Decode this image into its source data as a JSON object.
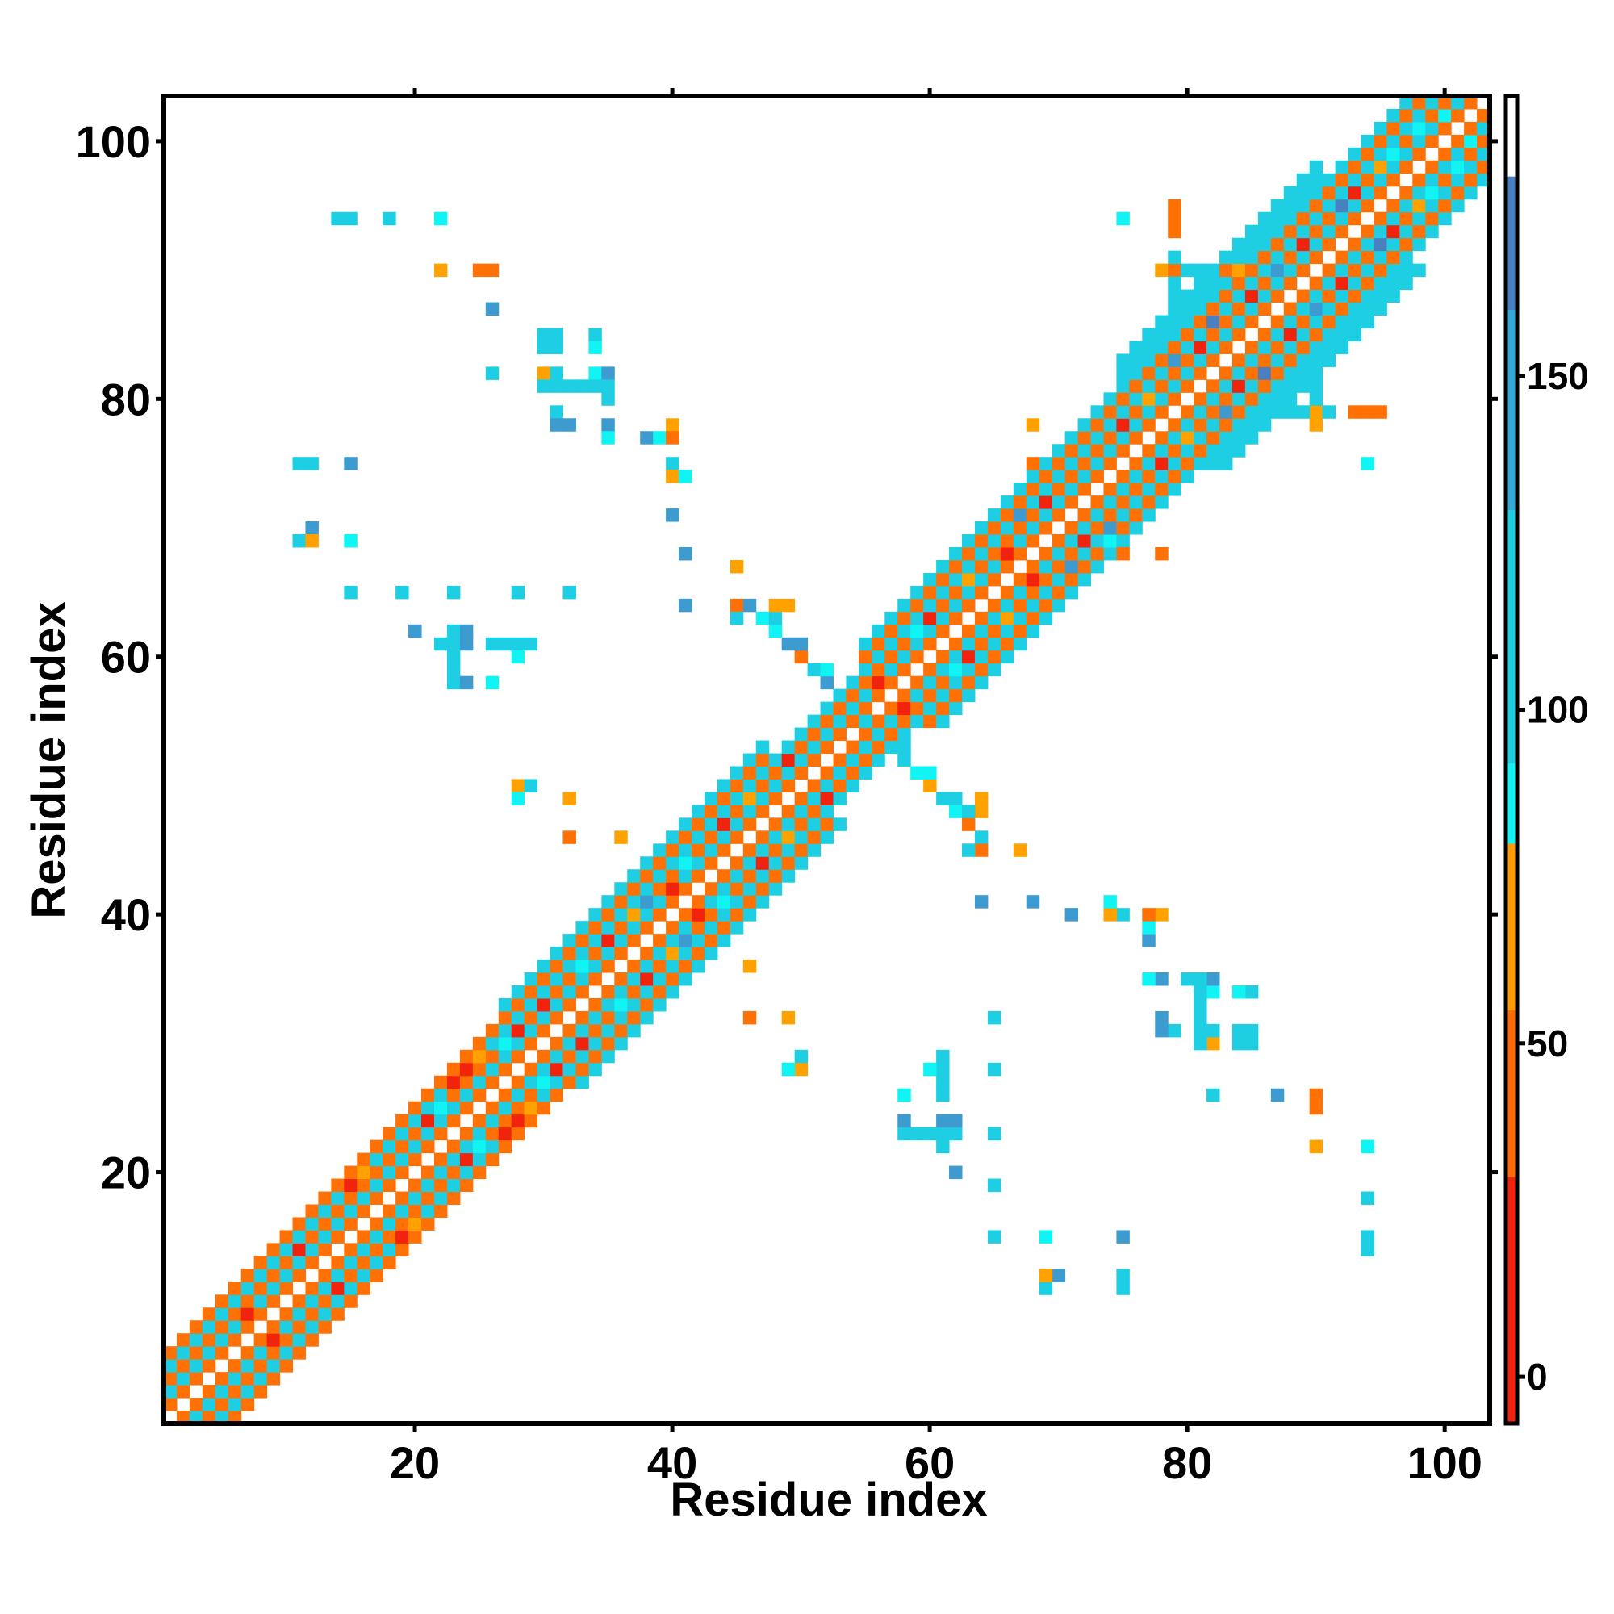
{
  "chart_data": {
    "type": "heatmap",
    "title": "",
    "xlabel": "Residue index",
    "ylabel": "Residue index",
    "xlim": [
      0.5,
      103.5
    ],
    "ylim": [
      0.5,
      103.5
    ],
    "xticks": [
      20,
      40,
      60,
      80,
      100
    ],
    "yticks": [
      20,
      40,
      60,
      80,
      100
    ],
    "colorbar": {
      "range": [
        -7,
        192
      ],
      "ticks": [
        0,
        50,
        100,
        150
      ],
      "stops": [
        {
          "from": -7,
          "to": 30,
          "color": "#f2230c"
        },
        {
          "from": 30,
          "to": 55,
          "color": "#ff6a05"
        },
        {
          "from": 55,
          "to": 80,
          "color": "#ff9a00"
        },
        {
          "from": 80,
          "to": 92,
          "color": "#10f4f4"
        },
        {
          "from": 92,
          "to": 130,
          "color": "#1ecfe4"
        },
        {
          "from": 130,
          "to": 160,
          "color": "#35a9d6"
        },
        {
          "from": 160,
          "to": 180,
          "color": "#4680c0"
        },
        {
          "from": 180,
          "to": 192,
          "color": "#ffffff"
        }
      ]
    },
    "codes": {
      "r": {
        "value": 10,
        "color": "#f2230c"
      },
      "o": {
        "value": 45,
        "color": "#ff7005"
      },
      "y": {
        "value": 70,
        "color": "#ffa200"
      },
      "c": {
        "value": 86,
        "color": "#10f4f4"
      },
      "k": {
        "value": 110,
        "color": "#1ecfe4"
      },
      "b": {
        "value": 150,
        "color": "#3d9bd0"
      },
      "d": {
        "value": 170,
        "color": "#4a80bf"
      }
    },
    "band": {
      "n": 103,
      "segments": [
        {
          "from": 1,
          "to": 26,
          "codes": "okoko"
        },
        {
          "from": 27,
          "to": 47,
          "codes": "okokok"
        },
        {
          "from": 48,
          "to": 54,
          "codes": "okok"
        },
        {
          "from": 55,
          "to": 74,
          "codes": "okokok"
        },
        {
          "from": 75,
          "to": 90,
          "codes": "okokokkk"
        },
        {
          "from": 91,
          "to": 103,
          "codes": "okokok"
        }
      ],
      "overrides": [
        [
          9,
          7,
          "r"
        ],
        [
          14,
          11,
          "r"
        ],
        [
          19,
          15,
          "r"
        ],
        [
          24,
          21,
          "r"
        ],
        [
          27,
          23,
          "r"
        ],
        [
          28,
          24,
          "r"
        ],
        [
          31,
          28,
          "r"
        ],
        [
          33,
          30,
          "r"
        ],
        [
          38,
          35,
          "r"
        ],
        [
          42,
          40,
          "r"
        ],
        [
          47,
          44,
          "r"
        ],
        [
          52,
          49,
          "r"
        ],
        [
          58,
          56,
          "r"
        ],
        [
          63,
          60,
          "r"
        ],
        [
          68,
          66,
          "r"
        ],
        [
          72,
          69,
          "r"
        ],
        [
          78,
          75,
          "r"
        ],
        [
          84,
          81,
          "r"
        ],
        [
          88,
          85,
          "r"
        ],
        [
          92,
          89,
          "r"
        ],
        [
          96,
          93,
          "r"
        ],
        [
          25,
          22,
          "c"
        ],
        [
          30,
          27,
          "c"
        ],
        [
          36,
          33,
          "c"
        ],
        [
          41,
          38,
          "b"
        ],
        [
          44,
          41,
          "c"
        ],
        [
          62,
          59,
          "c"
        ],
        [
          71,
          67,
          "b"
        ],
        [
          83,
          79,
          "b"
        ],
        [
          86,
          82,
          "d"
        ],
        [
          90,
          87,
          "b"
        ],
        [
          95,
          92,
          "d"
        ],
        [
          99,
          96,
          "c"
        ],
        [
          101,
          98,
          "c"
        ],
        [
          102,
          100,
          "c"
        ],
        [
          20,
          16,
          "y"
        ],
        [
          29,
          25,
          "y"
        ],
        [
          40,
          37,
          "y"
        ],
        [
          49,
          46,
          "y"
        ],
        [
          66,
          63,
          "y"
        ],
        [
          80,
          77,
          "y"
        ],
        [
          98,
          95,
          "y"
        ]
      ]
    },
    "antidiagonal": [
      [
        47,
        63,
        "c"
      ],
      [
        48,
        62,
        "c"
      ],
      [
        49,
        61,
        "b"
      ],
      [
        50,
        60,
        "o"
      ],
      [
        51,
        59,
        "k"
      ],
      [
        52,
        58,
        "b"
      ],
      [
        53,
        57,
        "k"
      ],
      [
        54,
        56,
        "o"
      ],
      [
        55,
        55,
        "k"
      ],
      [
        56,
        54,
        "k"
      ],
      [
        57,
        53,
        "o"
      ],
      [
        58,
        52,
        "k"
      ],
      [
        59,
        51,
        "c"
      ],
      [
        60,
        50,
        "y"
      ],
      [
        61,
        49,
        "k"
      ],
      [
        62,
        48,
        "c"
      ],
      [
        63,
        47,
        "o"
      ],
      [
        64,
        46,
        "k"
      ],
      [
        48,
        63,
        "c"
      ],
      [
        50,
        61,
        "b"
      ],
      [
        52,
        59,
        "c"
      ],
      [
        58,
        53,
        "k"
      ],
      [
        60,
        51,
        "c"
      ],
      [
        62,
        49,
        "k"
      ],
      [
        64,
        48,
        "y"
      ]
    ],
    "contacts": [
      [
        14,
        94,
        "k"
      ],
      [
        15,
        94,
        "k"
      ],
      [
        18,
        94,
        "k"
      ],
      [
        22,
        94,
        "c"
      ],
      [
        22,
        90,
        "y"
      ],
      [
        25,
        90,
        "o"
      ],
      [
        26,
        90,
        "o"
      ],
      [
        26,
        87,
        "b"
      ],
      [
        26,
        82,
        "k"
      ],
      [
        30,
        85,
        "k"
      ],
      [
        31,
        85,
        "k"
      ],
      [
        34,
        85,
        "k"
      ],
      [
        30,
        84,
        "k"
      ],
      [
        31,
        84,
        "k"
      ],
      [
        34,
        84,
        "c"
      ],
      [
        30,
        82,
        "y"
      ],
      [
        31,
        82,
        "k"
      ],
      [
        34,
        82,
        "c"
      ],
      [
        35,
        82,
        "b"
      ],
      [
        30,
        81,
        "k"
      ],
      [
        31,
        81,
        "k"
      ],
      [
        32,
        81,
        "k"
      ],
      [
        33,
        81,
        "k"
      ],
      [
        34,
        81,
        "k"
      ],
      [
        35,
        81,
        "k"
      ],
      [
        35,
        80,
        "k"
      ],
      [
        31,
        79,
        "k"
      ],
      [
        31,
        78,
        "b"
      ],
      [
        32,
        78,
        "b"
      ],
      [
        35,
        78,
        "b"
      ],
      [
        35,
        77,
        "c"
      ],
      [
        38,
        77,
        "b"
      ],
      [
        39,
        77,
        "c"
      ],
      [
        40,
        78,
        "y"
      ],
      [
        40,
        77,
        "o"
      ],
      [
        40,
        75,
        "k"
      ],
      [
        40,
        74,
        "y"
      ],
      [
        41,
        74,
        "c"
      ],
      [
        40,
        71,
        "b"
      ],
      [
        41,
        68,
        "b"
      ],
      [
        45,
        67,
        "y"
      ],
      [
        41,
        64,
        "b"
      ],
      [
        45,
        64,
        "o"
      ],
      [
        46,
        64,
        "b"
      ],
      [
        48,
        64,
        "y"
      ],
      [
        49,
        64,
        "y"
      ],
      [
        45,
        63,
        "k"
      ],
      [
        48,
        63,
        "k"
      ],
      [
        11,
        75,
        "k"
      ],
      [
        12,
        75,
        "k"
      ],
      [
        15,
        75,
        "b"
      ],
      [
        12,
        70,
        "b"
      ],
      [
        11,
        69,
        "k"
      ],
      [
        12,
        69,
        "y"
      ],
      [
        15,
        69,
        "c"
      ],
      [
        15,
        65,
        "k"
      ],
      [
        19,
        65,
        "k"
      ],
      [
        23,
        65,
        "k"
      ],
      [
        28,
        65,
        "k"
      ],
      [
        32,
        65,
        "k"
      ],
      [
        20,
        62,
        "b"
      ],
      [
        23,
        62,
        "k"
      ],
      [
        24,
        62,
        "b"
      ],
      [
        22,
        61,
        "k"
      ],
      [
        23,
        61,
        "k"
      ],
      [
        24,
        61,
        "b"
      ],
      [
        26,
        61,
        "k"
      ],
      [
        27,
        61,
        "k"
      ],
      [
        28,
        61,
        "k"
      ],
      [
        29,
        61,
        "k"
      ],
      [
        23,
        60,
        "k"
      ],
      [
        28,
        60,
        "c"
      ],
      [
        23,
        59,
        "k"
      ],
      [
        23,
        58,
        "k"
      ],
      [
        24,
        58,
        "b"
      ],
      [
        26,
        58,
        "c"
      ],
      [
        28,
        50,
        "y"
      ],
      [
        29,
        50,
        "k"
      ],
      [
        28,
        49,
        "c"
      ],
      [
        32,
        49,
        "y"
      ],
      [
        32,
        46,
        "o"
      ],
      [
        36,
        46,
        "y"
      ],
      [
        79,
        95,
        "o"
      ],
      [
        79,
        94,
        "o"
      ],
      [
        75,
        94,
        "c"
      ],
      [
        78,
        90,
        "y"
      ],
      [
        79,
        90,
        "o"
      ],
      [
        80,
        90,
        "k"
      ],
      [
        81,
        90,
        "k"
      ],
      [
        83,
        90,
        "o"
      ],
      [
        84,
        90,
        "y"
      ],
      [
        79,
        89,
        "k"
      ],
      [
        79,
        86,
        "k"
      ],
      [
        79,
        87,
        "k"
      ],
      [
        68,
        78,
        "y"
      ],
      [
        78,
        68,
        "o"
      ],
      [
        75,
        68,
        "o"
      ],
      [
        74,
        69,
        "c"
      ],
      [
        74,
        70,
        "b"
      ],
      [
        69,
        74,
        "o"
      ],
      [
        94,
        75,
        "c"
      ],
      [
        90,
        79,
        "y"
      ],
      [
        93,
        79,
        "o"
      ],
      [
        95,
        79,
        "o"
      ],
      [
        88,
        79,
        "k"
      ],
      [
        89,
        79,
        "k"
      ],
      [
        91,
        79,
        "k"
      ]
    ]
  }
}
